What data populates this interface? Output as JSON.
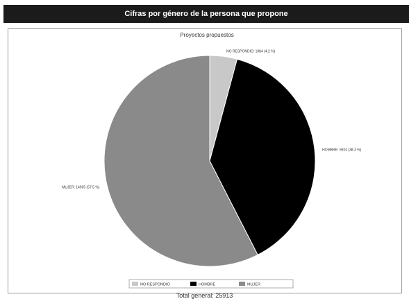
{
  "header": {
    "title": "Cifras por género de la persona que propone"
  },
  "chart_data": {
    "type": "pie",
    "title": "Proyectos propuestos",
    "slices": [
      {
        "label": "NO RESPONDIO",
        "value": 1084,
        "percent": "4.2 %",
        "color": "#c8c8c8"
      },
      {
        "label": "HOMBRE",
        "value": 9924,
        "percent": "38.3 %",
        "color": "#000000"
      },
      {
        "label": "MUJER",
        "value": 14905,
        "percent": "57.5 %",
        "color": "#8a8a8a"
      }
    ],
    "legend_position": "bottom-center"
  },
  "footer": {
    "total_text": "Total general: 25913"
  }
}
